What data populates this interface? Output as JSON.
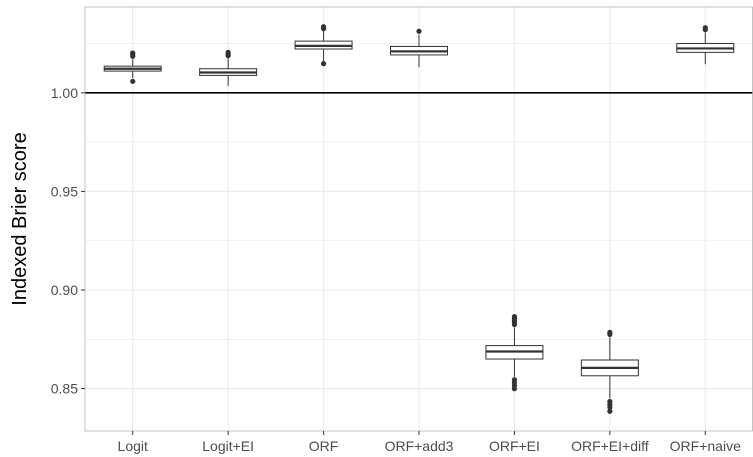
{
  "chart_data": {
    "type": "box",
    "title": "",
    "xlabel": "",
    "ylabel": "Indexed Brier score",
    "ylim": [
      0.8285,
      1.0435
    ],
    "yticks": [
      0.85,
      0.9,
      0.95,
      1.0
    ],
    "ytick_labels": [
      "0.85",
      "0.90",
      "0.95",
      "1.00"
    ],
    "reference_line": 1.0,
    "grid": true,
    "legend": "none",
    "categories": [
      "Logit",
      "Logit+EI",
      "ORF",
      "ORF+add3",
      "ORF+EI",
      "ORF+EI+diff",
      "ORF+naive"
    ],
    "boxes": [
      {
        "category": "Logit",
        "whisker_low": 1.0075,
        "q1": 1.011,
        "median": 1.0122,
        "q3": 1.0135,
        "whisker_high": 1.017,
        "outliers": [
          1.0185,
          1.0195,
          1.0202,
          1.0058
        ]
      },
      {
        "category": "Logit+EI",
        "whisker_low": 1.0035,
        "q1": 1.0088,
        "median": 1.0103,
        "q3": 1.0122,
        "whisker_high": 1.0175,
        "outliers": [
          1.0188,
          1.0196,
          1.0205
        ]
      },
      {
        "category": "ORF",
        "whisker_low": 1.016,
        "q1": 1.0222,
        "median": 1.0238,
        "q3": 1.0262,
        "whisker_high": 1.0315,
        "outliers": [
          1.0325,
          1.0335,
          1.0148
        ]
      },
      {
        "category": "ORF+add3",
        "whisker_low": 1.013,
        "q1": 1.0192,
        "median": 1.021,
        "q3": 1.0235,
        "whisker_high": 1.0295,
        "outliers": [
          1.0312
        ]
      },
      {
        "category": "ORF+EI",
        "whisker_low": 0.856,
        "q1": 0.865,
        "median": 0.8688,
        "q3": 0.8718,
        "whisker_high": 0.881,
        "outliers": [
          0.8825,
          0.8835,
          0.8845,
          0.8855,
          0.8865,
          0.8545,
          0.853,
          0.8515,
          0.85
        ]
      },
      {
        "category": "ORF+EI+diff",
        "whisker_low": 0.845,
        "q1": 0.8565,
        "median": 0.8605,
        "q3": 0.8645,
        "whisker_high": 0.876,
        "outliers": [
          0.8775,
          0.8785,
          0.8435,
          0.842,
          0.8405,
          0.8385
        ]
      },
      {
        "category": "ORF+naive",
        "whisker_low": 1.0145,
        "q1": 1.0205,
        "median": 1.0225,
        "q3": 1.025,
        "whisker_high": 1.0305,
        "outliers": [
          1.032,
          1.033
        ]
      }
    ],
    "colors": {
      "box_fill": "#ffffff",
      "box_stroke": "#333333",
      "grid": "#ebebeb",
      "reference": "#000000",
      "panel_border": "#b3b3b3"
    }
  }
}
